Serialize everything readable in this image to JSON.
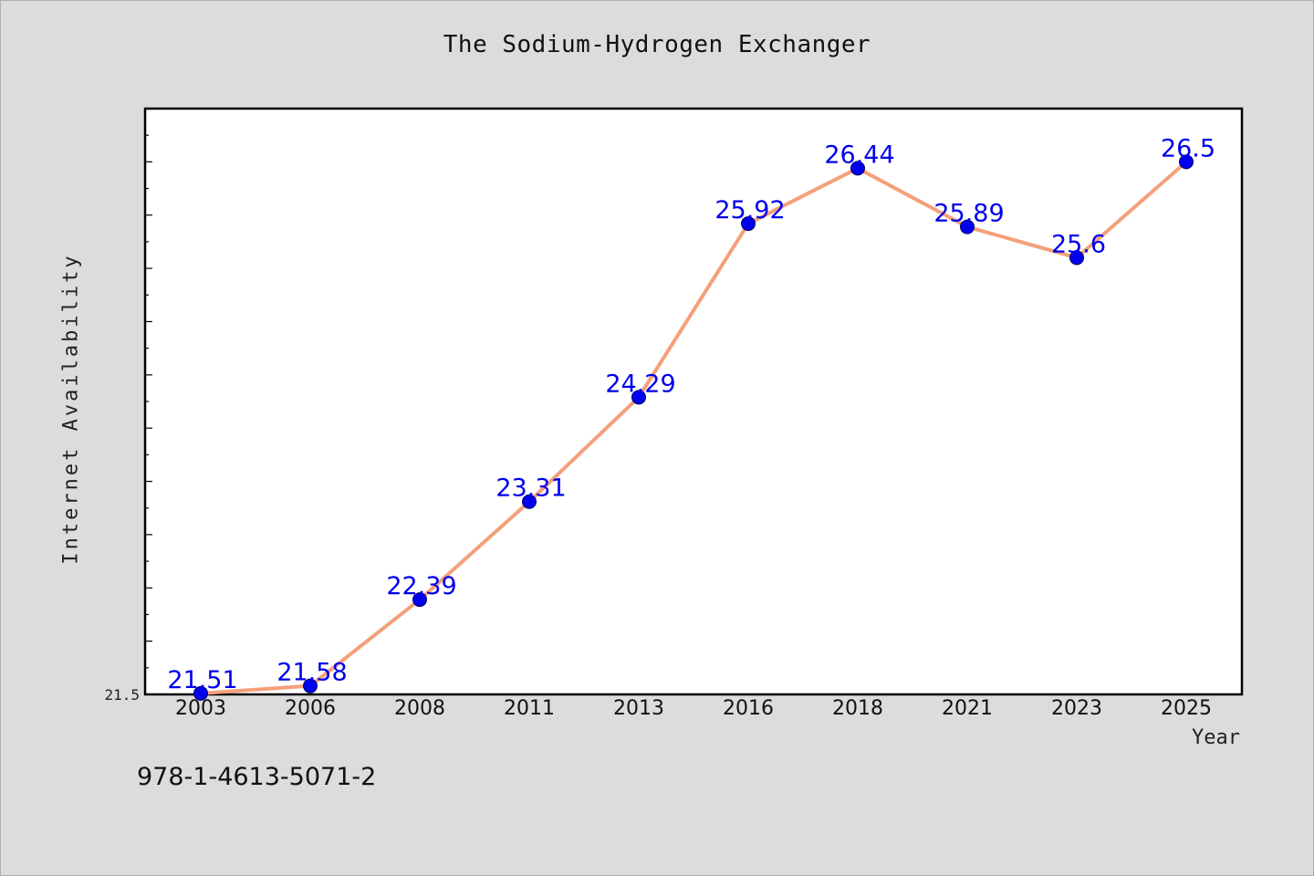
{
  "chart_data": {
    "type": "line",
    "title": "The Sodium-Hydrogen Exchanger",
    "xlabel": "Year",
    "ylabel": "Internet Availability",
    "categories": [
      "2003",
      "2006",
      "2008",
      "2011",
      "2013",
      "2016",
      "2018",
      "2021",
      "2023",
      "2025"
    ],
    "series": [
      {
        "values": [
          21.51,
          21.58,
          22.39,
          23.31,
          24.29,
          25.92,
          26.44,
          25.89,
          25.6,
          26.5
        ]
      }
    ],
    "data_labels": [
      "21.51",
      "21.58",
      "22.39",
      "23.31",
      "24.29",
      "25.92",
      "26.44",
      "25.89",
      "25.6",
      "26.5"
    ],
    "ylim": [
      21.5,
      27.0
    ],
    "y_tick_labels": [
      "21.5"
    ],
    "grid": false,
    "colors": {
      "line": "#f4a07a",
      "marker": "#0000ee",
      "data_label": "#0000ee",
      "background": "#dcdcdc",
      "plot_area": "#ffffff"
    }
  },
  "footnote": "978-1-4613-5071-2"
}
